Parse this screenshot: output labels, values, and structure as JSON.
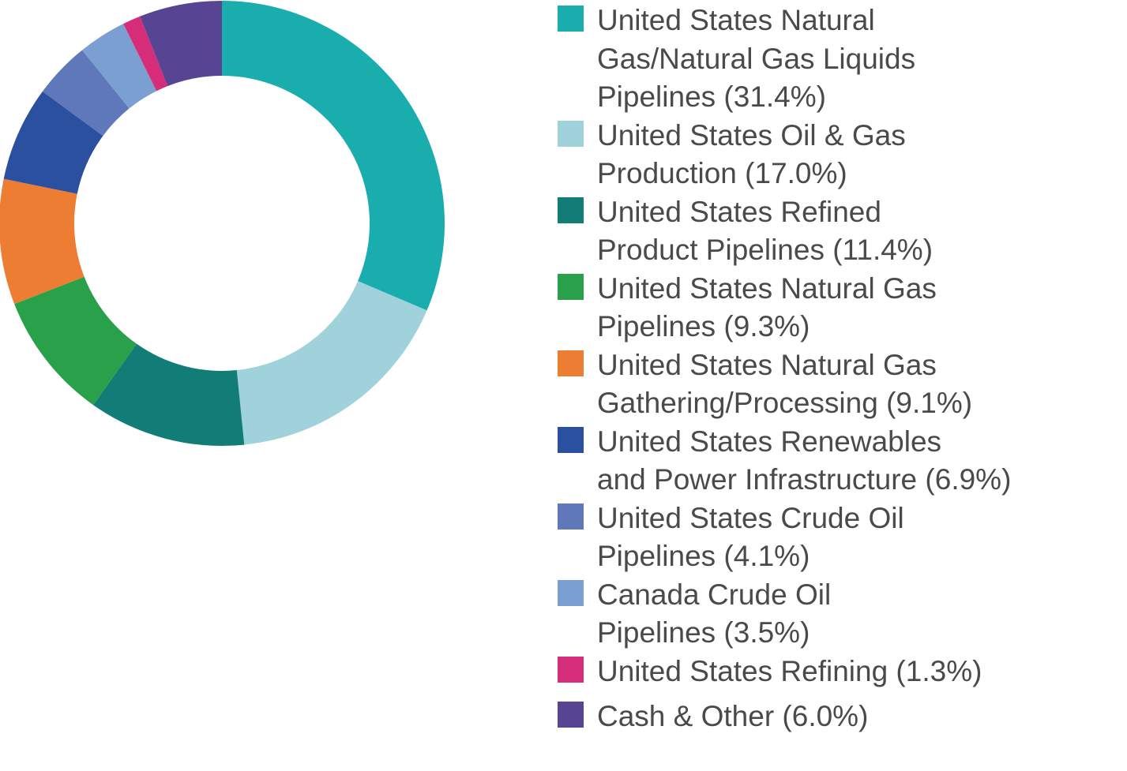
{
  "chart_data": {
    "type": "pie",
    "donut": true,
    "legend_position": "right",
    "slices": [
      {
        "label": "United States Natural\nGas/Natural Gas Liquids\nPipelines (31.4%)",
        "value": 31.4,
        "color": "#1aadad"
      },
      {
        "label": "United States Oil & Gas\nProduction (17.0%)",
        "value": 17.0,
        "color": "#a0d2db"
      },
      {
        "label": "United States Refined\nProduct Pipelines (11.4%)",
        "value": 11.4,
        "color": "#127c77"
      },
      {
        "label": "United States Natural Gas\nPipelines (9.3%)",
        "value": 9.3,
        "color": "#29a04a"
      },
      {
        "label": "United States Natural Gas\nGathering/Processing (9.1%)",
        "value": 9.1,
        "color": "#ec7d33"
      },
      {
        "label": "United States Renewables\nand Power Infrastructure (6.9%)",
        "value": 6.9,
        "color": "#2b50a0"
      },
      {
        "label": "United States Crude Oil\nPipelines (4.1%)",
        "value": 4.1,
        "color": "#5e78b9"
      },
      {
        "label": "Canada Crude Oil\nPipelines (3.5%)",
        "value": 3.5,
        "color": "#7a9fd0"
      },
      {
        "label": "United States Refining (1.3%)",
        "value": 1.3,
        "color": "#d52d79"
      },
      {
        "label": "Cash & Other (6.0%)",
        "value": 6.0,
        "color": "#574593"
      }
    ]
  }
}
